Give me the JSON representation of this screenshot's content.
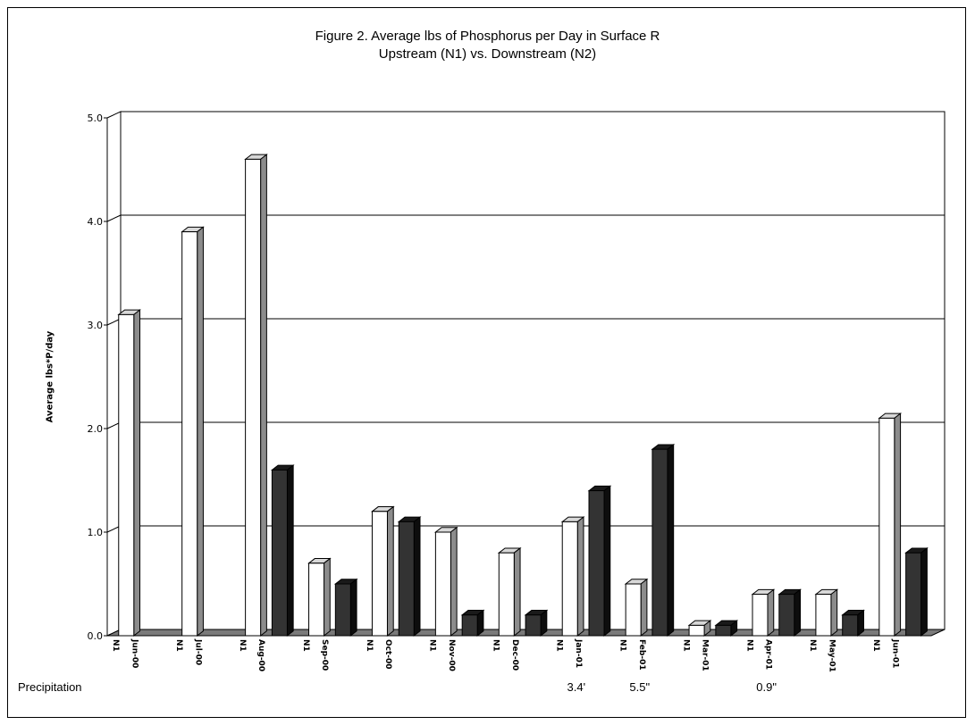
{
  "chart_data": {
    "type": "bar",
    "title": "Figure 2. Average lbs of Phosphorus per Day in Surface R",
    "subtitle": "Upstream (N1) vs. Downstream (N2)",
    "ylabel": "Average lbs*P/day",
    "ylim": [
      0,
      5
    ],
    "yticks": [
      "0.0",
      "1.0",
      "2.0",
      "3.0",
      "4.0",
      "5.0"
    ],
    "grid": true,
    "months": [
      "Jun-00",
      "Jul-00",
      "Aug-00",
      "Sep-00",
      "Oct-00",
      "Nov-00",
      "Dec-00",
      "Jan-01",
      "Feb-01",
      "Mar-01",
      "Apr-01",
      "May-01",
      "Jun-01"
    ],
    "series_label": "N1",
    "series": [
      {
        "values": [
          3.1,
          3.9,
          4.6,
          0.7,
          1.2,
          1.0,
          0.8,
          1.1,
          0.5,
          0.1,
          0.4,
          0.4,
          2.1
        ],
        "color": "#ffffff"
      },
      {
        "values": [
          null,
          null,
          1.6,
          0.5,
          1.1,
          0.2,
          0.2,
          1.4,
          1.8,
          0.1,
          0.4,
          0.2,
          0.8
        ],
        "color": "#333333"
      }
    ],
    "precipitation_label": "Precipitation",
    "precipitation": [
      {
        "month": "Jan-01",
        "value": "3.4'"
      },
      {
        "month": "Feb-01",
        "value": "5.5\""
      },
      {
        "month": "Apr-01",
        "value": "0.9\""
      }
    ]
  }
}
